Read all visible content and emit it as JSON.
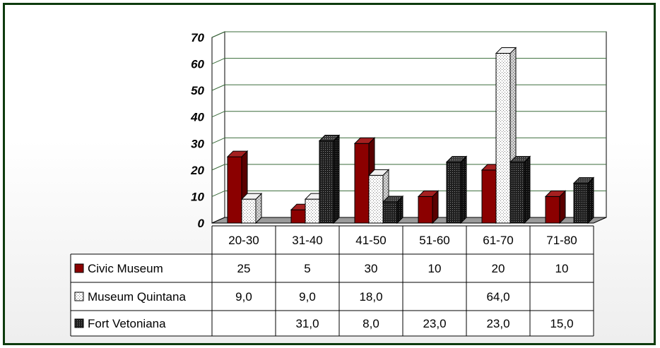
{
  "colors": {
    "frame": "#0d3b0d",
    "grid": "#3a6b3a",
    "civic": "#8b0000",
    "civic_side": "#5a0000",
    "civic_top": "#a52020",
    "quintana": "#ffffff",
    "fort": "#1a1a1a"
  },
  "chart_data": {
    "type": "bar",
    "title": "",
    "xlabel": "",
    "ylabel": "",
    "ylim": [
      0,
      70
    ],
    "yticks": [
      "0",
      "10",
      "20",
      "30",
      "40",
      "50",
      "60",
      "70"
    ],
    "categories": [
      "20-30",
      "31-40",
      "41-50",
      "51-60",
      "61-70",
      "71-80"
    ],
    "series": [
      {
        "name": "Civic Museum",
        "values": [
          25,
          5,
          30,
          10,
          20,
          10
        ],
        "labels": [
          "25",
          "5",
          "30",
          "10",
          "20",
          "10"
        ]
      },
      {
        "name": "Museum Quintana",
        "values": [
          9,
          9,
          18,
          null,
          64,
          null
        ],
        "labels": [
          "9,0",
          "9,0",
          "18,0",
          "",
          "64,0",
          ""
        ]
      },
      {
        "name": "Fort Vetoniana",
        "values": [
          null,
          31,
          8,
          23,
          23,
          15
        ],
        "labels": [
          "",
          "31,0",
          "8,0",
          "23,0",
          "23,0",
          "15,0"
        ]
      }
    ],
    "grid": true,
    "legend": "data-table-below",
    "style": "3d-clustered-bar"
  }
}
